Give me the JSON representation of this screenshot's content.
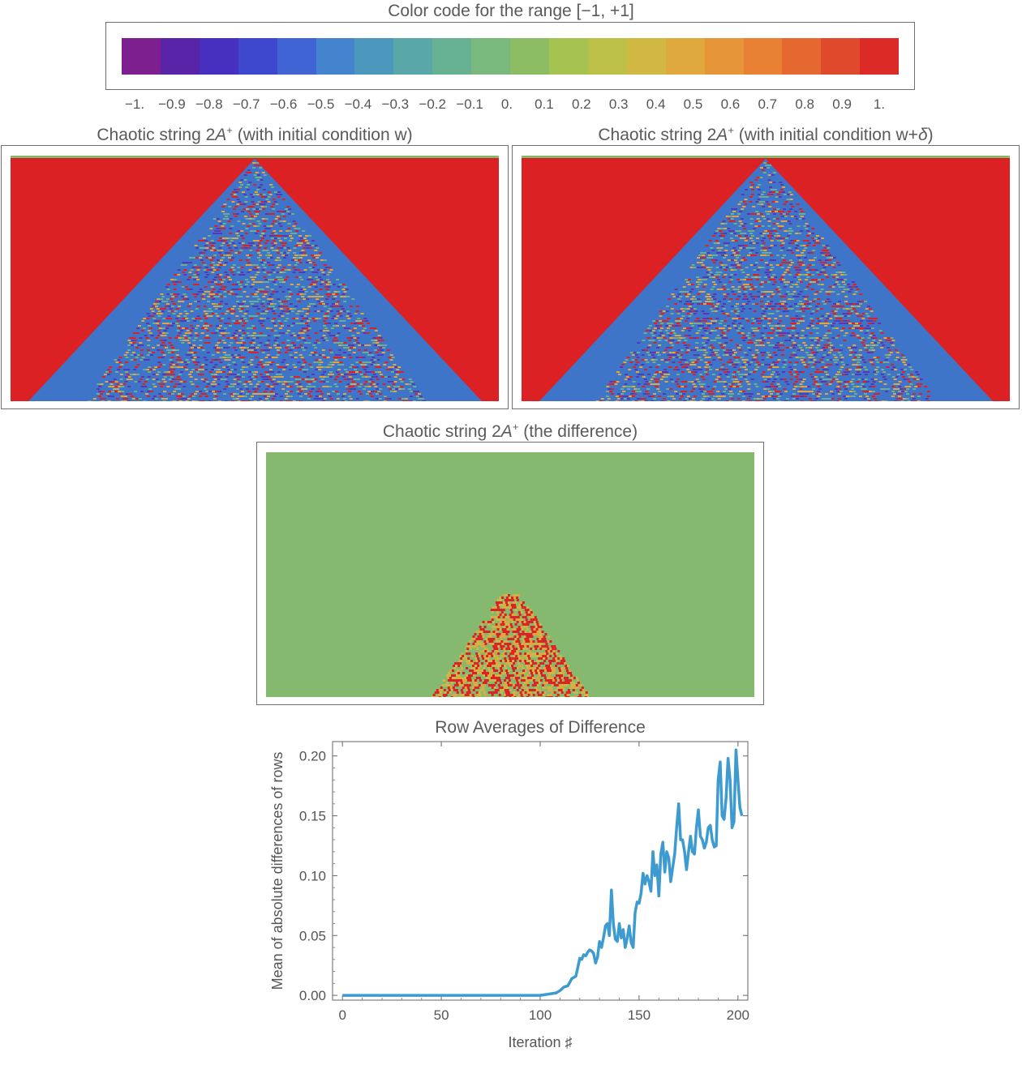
{
  "colorbar": {
    "title": "Color code for the range [−1, +1]",
    "ticks": [
      "−1.",
      "−0.9",
      "−0.8",
      "−0.7",
      "−0.6",
      "−0.5",
      "−0.4",
      "−0.3",
      "−0.2",
      "−0.1",
      "0.",
      "0.1",
      "0.2",
      "0.3",
      "0.4",
      "0.5",
      "0.6",
      "0.7",
      "0.8",
      "0.9",
      "1."
    ],
    "colors": [
      "#7d1f8f",
      "#5a24a8",
      "#4730c0",
      "#3d48cf",
      "#4164d4",
      "#4483cd",
      "#4b97bd",
      "#59a7a8",
      "#68b294",
      "#79b97d",
      "#8cbd65",
      "#a6c251",
      "#bcbf48",
      "#d0b843",
      "#dfa93e",
      "#e69638",
      "#e88134",
      "#e56830",
      "#e04a2c",
      "#dc2a27"
    ]
  },
  "panels": {
    "left": {
      "title_pre": "Chaotic string 2",
      "title_sup": "+",
      "title_post": " (with initial condition w)"
    },
    "right": {
      "title_pre": "Chaotic string 2",
      "title_sup": "+",
      "title_post": " (with initial condition w+",
      "title_delta": "δ",
      "title_close": ")"
    },
    "diff": {
      "title_pre": "Chaotic string 2",
      "title_sup": "+",
      "title_post": " (the difference)"
    },
    "title_italic": "A"
  },
  "colors": {
    "red": "#dc2124",
    "blue": "#3f75c9",
    "green": "#85b96f",
    "orange": "#e0a640",
    "purple": "#5a36b0",
    "line": "#3e9bd0"
  },
  "chart_data": {
    "type": "line",
    "title": "Row Averages of Difference",
    "xlabel": "Iteration ♯",
    "ylabel": "Mean of absolute differences of rows",
    "xlim": [
      -5,
      205
    ],
    "ylim": [
      -0.004,
      0.212
    ],
    "xticks": [
      0,
      50,
      100,
      150,
      200
    ],
    "xtick_labels": [
      "0",
      "50",
      "100",
      "150",
      "200"
    ],
    "yticks": [
      0,
      0.05,
      0.1,
      0.15,
      0.2
    ],
    "ytick_labels": [
      "0.00",
      "0.05",
      "0.10",
      "0.15",
      "0.20"
    ],
    "series": [
      {
        "color": "#3e9bd0",
        "x": [
          0,
          100,
          104,
          108,
          110,
          112,
          114,
          116,
          118,
          119,
          120,
          121,
          122,
          123,
          124,
          125,
          126,
          127,
          128,
          129,
          130,
          131,
          132,
          133,
          134,
          135,
          136,
          137,
          138,
          139,
          140,
          141,
          142,
          143,
          144,
          145,
          146,
          147,
          148,
          149,
          150,
          151,
          152,
          153,
          154,
          155,
          156,
          157,
          158,
          159,
          160,
          161,
          162,
          163,
          164,
          165,
          166,
          167,
          168,
          169,
          170,
          171,
          172,
          173,
          174,
          175,
          176,
          177,
          178,
          179,
          180,
          181,
          182,
          183,
          184,
          185,
          186,
          187,
          188,
          189,
          190,
          191,
          192,
          193,
          194,
          195,
          196,
          197,
          198,
          199,
          200,
          201,
          202
        ],
        "y": [
          0,
          0,
          0.001,
          0.002,
          0.004,
          0.007,
          0.008,
          0.014,
          0.016,
          0.023,
          0.031,
          0.03,
          0.034,
          0.033,
          0.036,
          0.038,
          0.037,
          0.035,
          0.027,
          0.032,
          0.045,
          0.04,
          0.048,
          0.058,
          0.06,
          0.05,
          0.088,
          0.06,
          0.047,
          0.045,
          0.06,
          0.048,
          0.055,
          0.04,
          0.048,
          0.058,
          0.044,
          0.04,
          0.069,
          0.078,
          0.077,
          0.085,
          0.102,
          0.093,
          0.1,
          0.095,
          0.087,
          0.12,
          0.1,
          0.109,
          0.083,
          0.118,
          0.128,
          0.103,
          0.12,
          0.115,
          0.095,
          0.107,
          0.118,
          0.14,
          0.16,
          0.13,
          0.13,
          0.12,
          0.105,
          0.12,
          0.133,
          0.12,
          0.118,
          0.14,
          0.155,
          0.133,
          0.13,
          0.123,
          0.128,
          0.14,
          0.142,
          0.13,
          0.124,
          0.125,
          0.18,
          0.195,
          0.15,
          0.147,
          0.165,
          0.198,
          0.18,
          0.14,
          0.145,
          0.205,
          0.18,
          0.157,
          0.15
        ]
      }
    ]
  }
}
